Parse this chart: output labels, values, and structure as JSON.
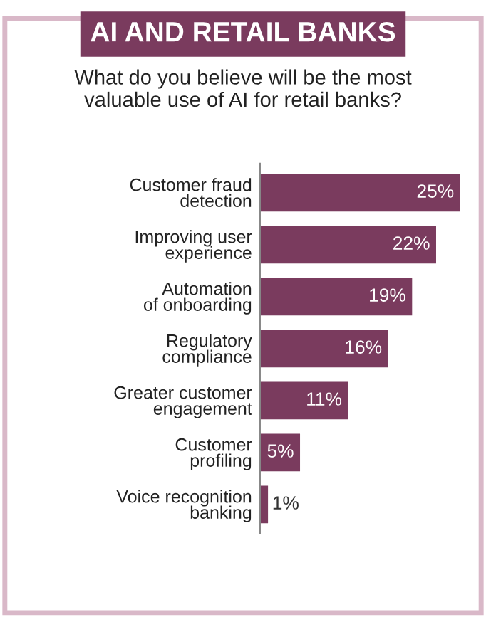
{
  "chart_data": {
    "type": "bar",
    "orientation": "horizontal",
    "title": "AI AND RETAIL BANKS",
    "subtitle": "What do you believe will be the most\nvaluable use of AI for retail banks?",
    "categories": [
      "Customer fraud\ndetection",
      "Improving user\nexperience",
      "Automation\nof onboarding",
      "Regulatory\ncompliance",
      "Greater customer\nengagement",
      "Customer\nprofiling",
      "Voice recognition\nbanking"
    ],
    "values": [
      25,
      22,
      19,
      16,
      11,
      5,
      1
    ],
    "value_labels": [
      "25%",
      "22%",
      "19%",
      "16%",
      "11%",
      "5%",
      "1%"
    ],
    "color": "#7a3b5e",
    "grid": false,
    "legend": false,
    "tick_labels": "y"
  }
}
